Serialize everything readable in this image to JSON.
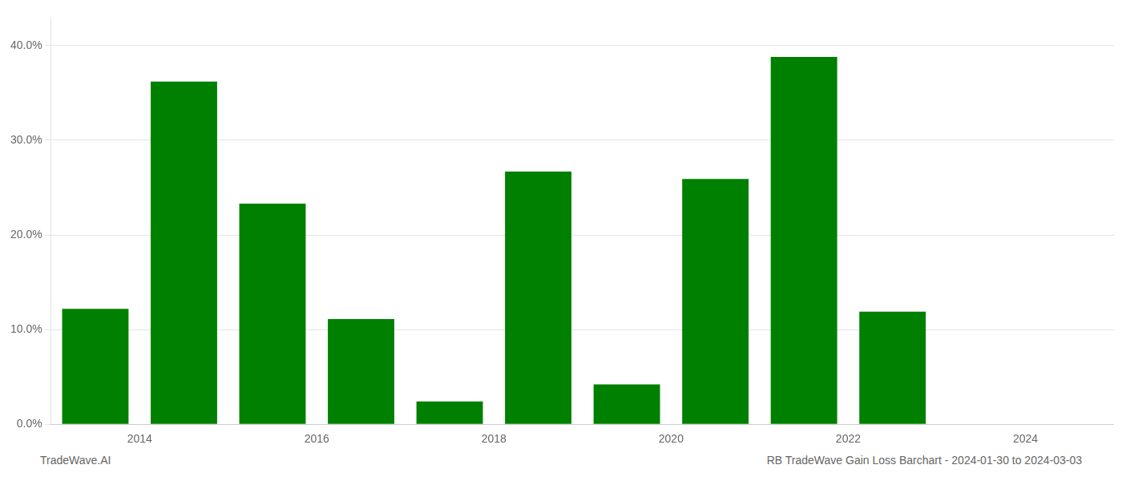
{
  "chart_data": {
    "type": "bar",
    "x": [
      2014,
      2015,
      2016,
      2017,
      2018,
      2019,
      2020,
      2021,
      2022,
      2023
    ],
    "values": [
      0.122,
      0.362,
      0.233,
      0.111,
      0.024,
      0.267,
      0.042,
      0.259,
      0.388,
      0.119
    ],
    "color": "#008000",
    "xlim": [
      2013.5,
      2025.5
    ],
    "xticks": [
      {
        "value": 2014.5,
        "label": "2014"
      },
      {
        "value": 2016.5,
        "label": "2016"
      },
      {
        "value": 2018.5,
        "label": "2018"
      },
      {
        "value": 2020.5,
        "label": "2020"
      },
      {
        "value": 2022.5,
        "label": "2022"
      },
      {
        "value": 2024.5,
        "label": "2024"
      }
    ],
    "ylim": [
      0,
      0.43
    ],
    "yticks": [
      {
        "value": 0.0,
        "label": "0.0%"
      },
      {
        "value": 0.1,
        "label": "10.0%"
      },
      {
        "value": 0.2,
        "label": "20.0%"
      },
      {
        "value": 0.3,
        "label": "30.0%"
      },
      {
        "value": 0.4,
        "label": "40.0%"
      }
    ],
    "grid": true,
    "annotations": [
      "TradeWave.AI",
      "RB TradeWave Gain Loss Barchart - 2024-01-30 to 2024-03-03"
    ]
  }
}
